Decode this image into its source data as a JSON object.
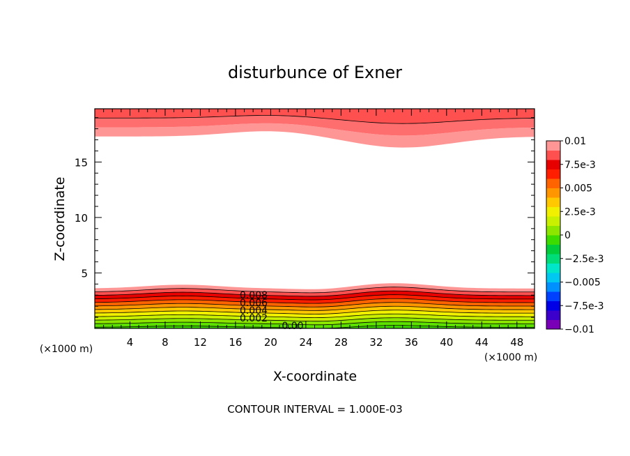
{
  "chart_data": {
    "type": "contour",
    "title": "disturbunce of Exner",
    "xlabel": "X-coordinate",
    "ylabel": "Z-coordinate",
    "x_unit": "(×1000 m)",
    "y_unit": "(×1000 m)",
    "footer": "CONTOUR INTERVAL = 1.000E-03",
    "xlim": [
      0,
      50
    ],
    "ylim": [
      0,
      19.8
    ],
    "x_ticks": [
      4,
      8,
      12,
      16,
      20,
      24,
      28,
      32,
      36,
      40,
      44,
      48
    ],
    "y_ticks": [
      5,
      10,
      15
    ],
    "contour_labels": [
      "0.008",
      "0.006",
      "0.004",
      "0.002",
      "0.00"
    ],
    "colorbar": {
      "min": -0.01,
      "max": 0.01,
      "tick_labels": [
        "0.01",
        "7.5e-3",
        "0.005",
        "2.5e-3",
        "0",
        "−2.5e-3",
        "−0.005",
        "−7.5e-3",
        "−0.01"
      ],
      "colors": [
        "#7a00b8",
        "#3c00cc",
        "#0000e6",
        "#0040ff",
        "#0090ff",
        "#00c8f0",
        "#00e6c8",
        "#00dc78",
        "#00cc3c",
        "#3cdc00",
        "#8ce600",
        "#c8f000",
        "#f0f000",
        "#ffc800",
        "#ff9600",
        "#ff6400",
        "#ff1e00",
        "#e60000",
        "#ff5050",
        "#ff9696"
      ]
    },
    "bottom_layer": {
      "from_y": 0.1,
      "to_y": 3.6,
      "peak_x": [
        10,
        34
      ],
      "trough_x": [
        26
      ]
    },
    "top_layer": {
      "from_y": 17.3,
      "to_y": 19.8,
      "crest_x": 20,
      "trough_x": 35
    }
  }
}
